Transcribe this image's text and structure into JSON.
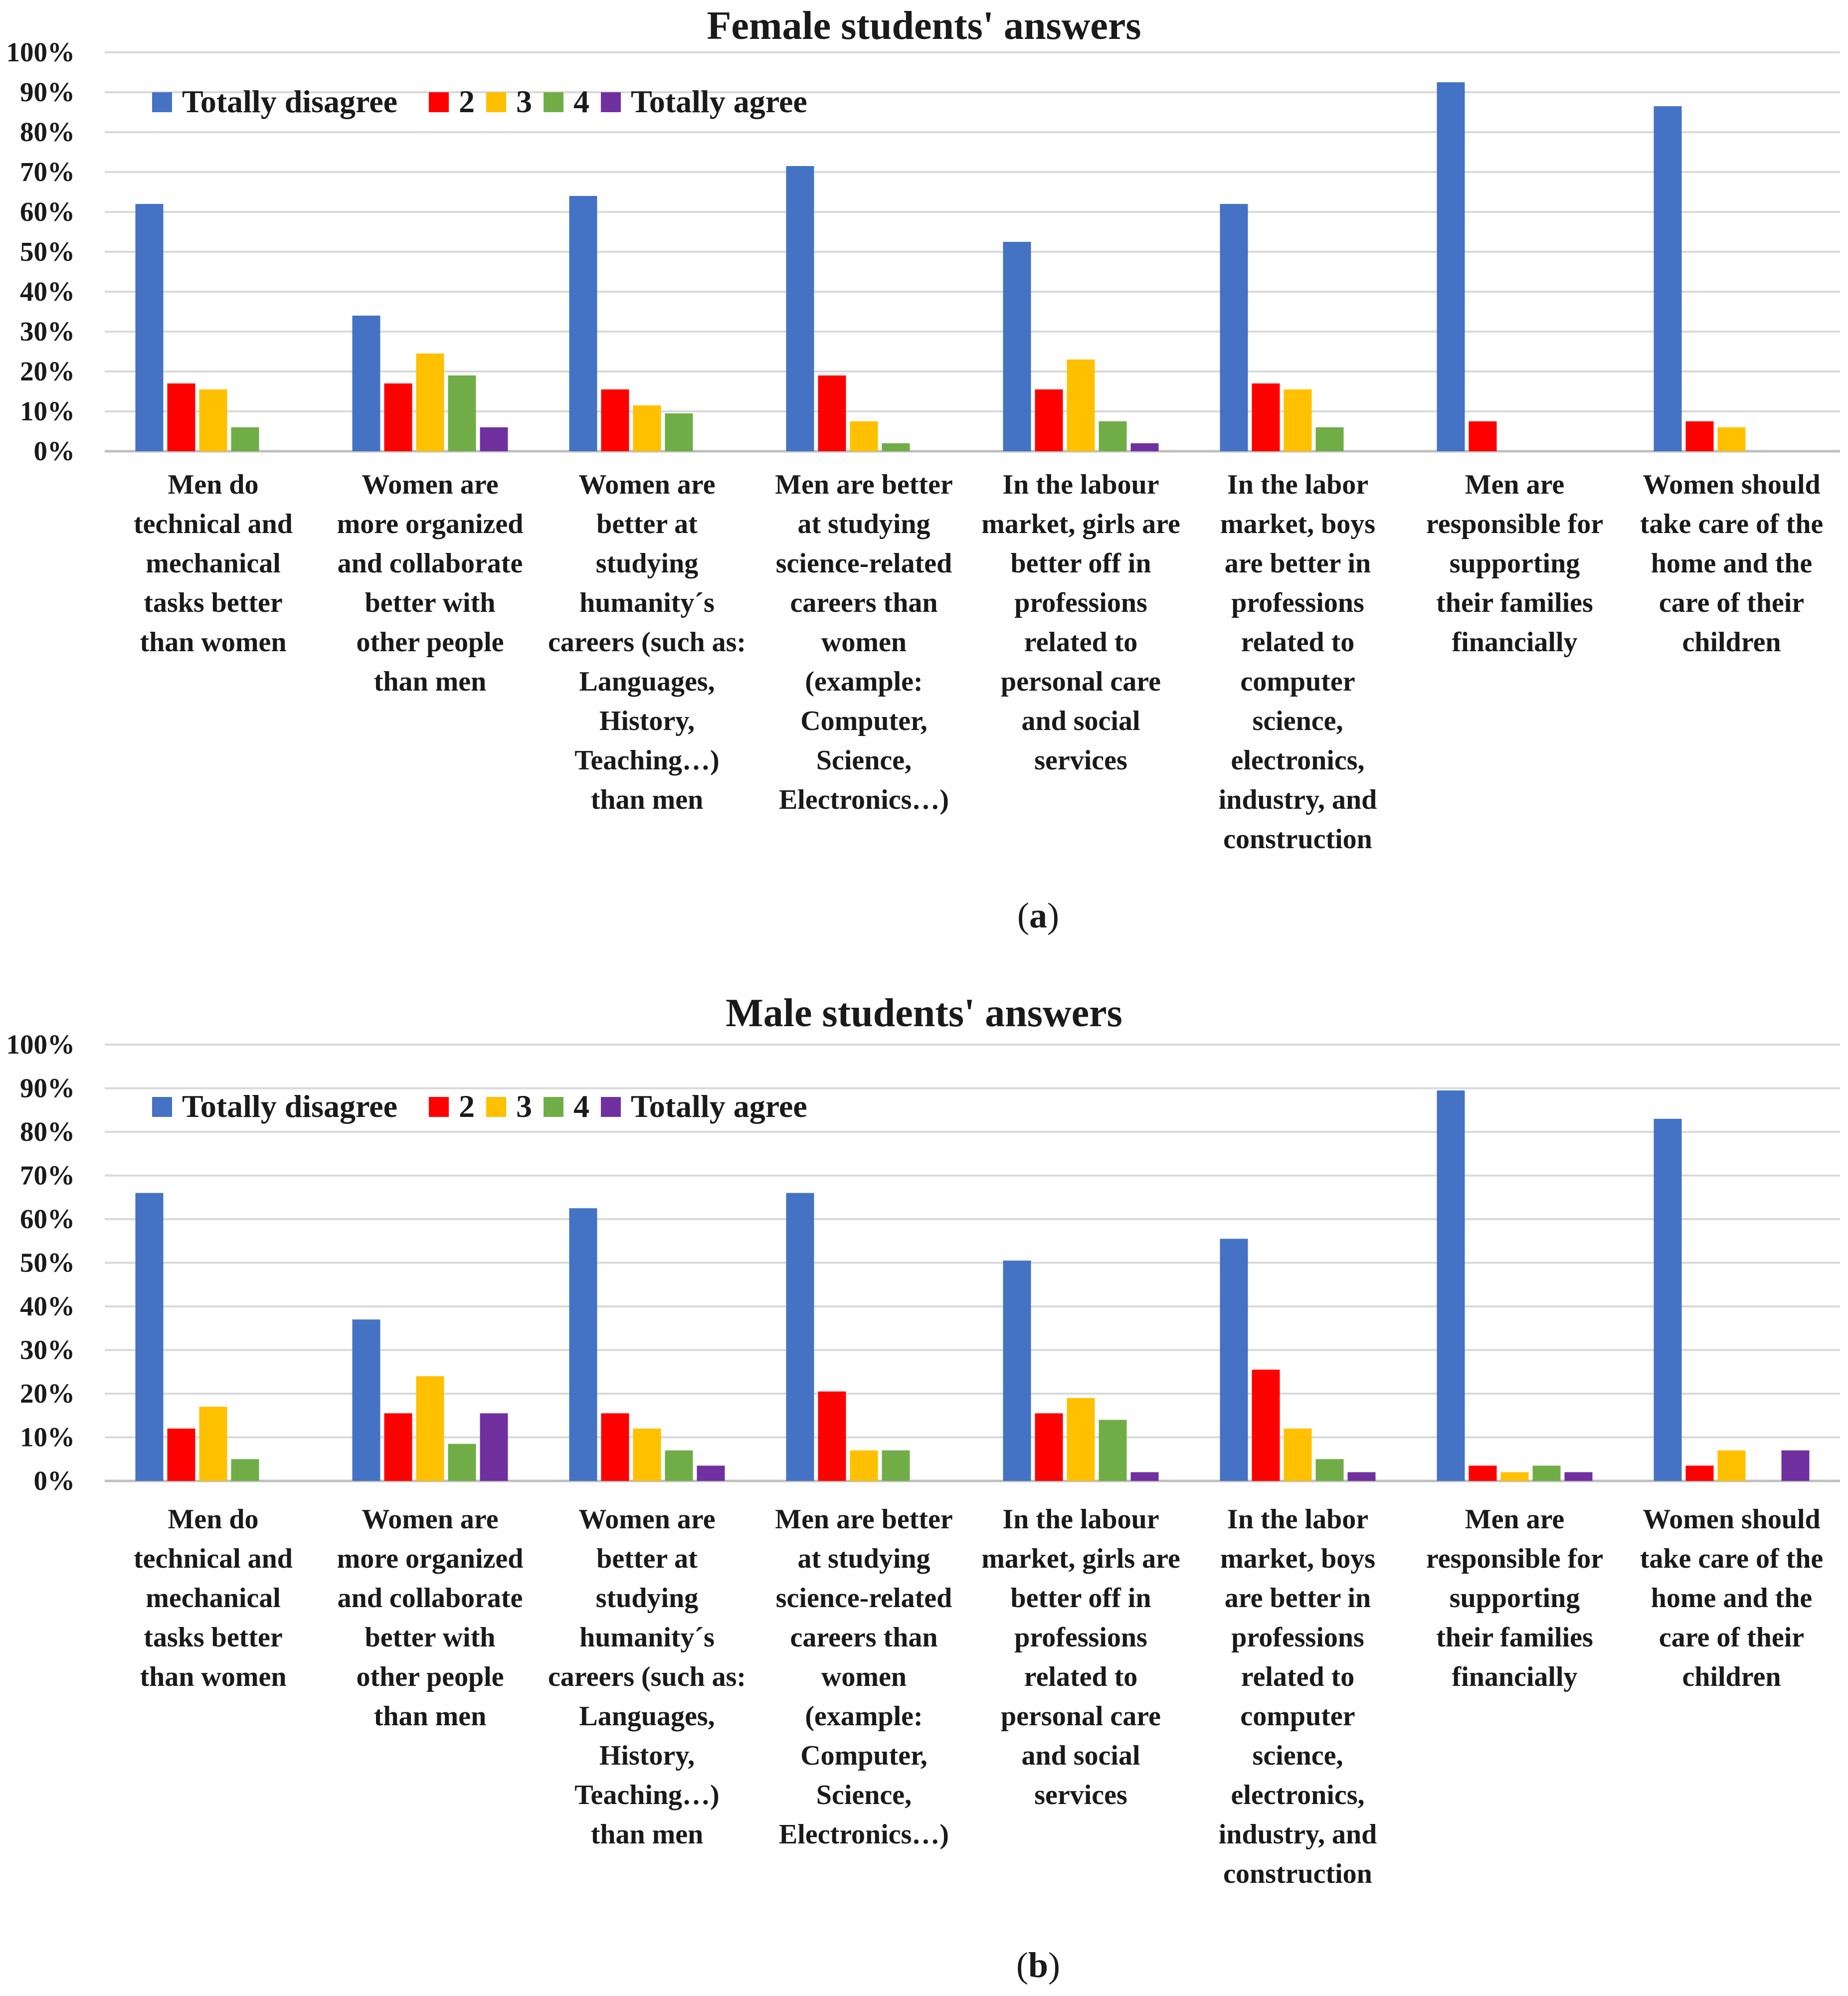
{
  "chart_data": [
    {
      "type": "bar",
      "title": "Female students' answers",
      "caption": {
        "open": "(",
        "letter": "a",
        "close": ")"
      },
      "ylim": [
        0,
        100
      ],
      "yticks": [
        "0%",
        "10%",
        "20%",
        "30%",
        "40%",
        "50%",
        "60%",
        "70%",
        "80%",
        "90%",
        "100%"
      ],
      "grid": true,
      "legend_position": "top-left",
      "categories": [
        [
          "Men do",
          "technical and",
          "mechanical",
          "tasks better",
          "than women"
        ],
        [
          "Women are",
          "more organized",
          "and collaborate",
          "better with",
          "other people",
          "than men"
        ],
        [
          "Women are",
          "better at",
          "studying",
          "humanity´s",
          "careers (such as:",
          "Languages,",
          "History,",
          "Teaching…)",
          "than men"
        ],
        [
          "Men are better",
          "at studying",
          "science-related",
          "careers than",
          "women",
          "(example:",
          "Computer,",
          "Science,",
          "Electronics…)"
        ],
        [
          "In the labour",
          "market, girls are",
          "better off in",
          "professions",
          "related to",
          "personal care",
          "and social",
          "services"
        ],
        [
          "In the labor",
          "market, boys",
          "are better in",
          "professions",
          "related to",
          "computer",
          "science,",
          "electronics,",
          "industry, and",
          "construction"
        ],
        [
          "Men are",
          "responsible for",
          "supporting",
          "their families",
          "financially"
        ],
        [
          "Women should",
          "take care of the",
          "home and the",
          "care of their",
          "children"
        ]
      ],
      "series": [
        {
          "name": "Totally disagree",
          "color": "#4472C4",
          "values": [
            62,
            34,
            64,
            71.5,
            52.5,
            62,
            92.5,
            86.5
          ]
        },
        {
          "name": "2",
          "color": "#FF0000",
          "values": [
            17,
            17,
            15.5,
            19,
            15.5,
            17,
            7.5,
            7.5
          ]
        },
        {
          "name": "3",
          "color": "#FFC000",
          "values": [
            15.5,
            24.5,
            11.5,
            7.5,
            23,
            15.5,
            0,
            6
          ]
        },
        {
          "name": "4",
          "color": "#70AD47",
          "values": [
            6,
            19,
            9.5,
            2,
            7.5,
            6,
            0,
            0
          ]
        },
        {
          "name": "Totally agree",
          "color": "#7030A0",
          "values": [
            0,
            6,
            0,
            0,
            2,
            0,
            0,
            0
          ]
        }
      ]
    },
    {
      "type": "bar",
      "title": "Male students' answers",
      "caption": {
        "open": "(",
        "letter": "b",
        "close": ")"
      },
      "ylim": [
        0,
        100
      ],
      "yticks": [
        "0%",
        "10%",
        "20%",
        "30%",
        "40%",
        "50%",
        "60%",
        "70%",
        "80%",
        "90%",
        "100%"
      ],
      "grid": true,
      "legend_position": "top-left",
      "categories": [
        [
          "Men do",
          "technical and",
          "mechanical",
          "tasks better",
          "than women"
        ],
        [
          "Women are",
          "more organized",
          "and collaborate",
          "better with",
          "other people",
          "than men"
        ],
        [
          "Women are",
          "better at",
          "studying",
          "humanity´s",
          "careers (such as:",
          "Languages,",
          "History,",
          "Teaching…)",
          "than men"
        ],
        [
          "Men are better",
          "at studying",
          "science-related",
          "careers than",
          "women",
          "(example:",
          "Computer,",
          "Science,",
          "Electronics…)"
        ],
        [
          "In the labour",
          "market, girls are",
          "better off in",
          "professions",
          "related to",
          "personal care",
          "and social",
          "services"
        ],
        [
          "In the labor",
          "market, boys",
          "are better in",
          "professions",
          "related to",
          "computer",
          "science,",
          "electronics,",
          "industry, and",
          "construction"
        ],
        [
          "Men are",
          "responsible for",
          "supporting",
          "their families",
          "financially"
        ],
        [
          "Women should",
          "take care of the",
          "home and the",
          "care of their",
          "children"
        ]
      ],
      "series": [
        {
          "name": "Totally disagree",
          "color": "#4472C4",
          "values": [
            66,
            37,
            62.5,
            66,
            50.5,
            55.5,
            89.5,
            83
          ]
        },
        {
          "name": "2",
          "color": "#FF0000",
          "values": [
            12,
            15.5,
            15.5,
            20.5,
            15.5,
            25.5,
            3.5,
            3.5
          ]
        },
        {
          "name": "3",
          "color": "#FFC000",
          "values": [
            17,
            24,
            12,
            7,
            19,
            12,
            2,
            7
          ]
        },
        {
          "name": "4",
          "color": "#70AD47",
          "values": [
            5,
            8.5,
            7,
            7,
            14,
            5,
            3.5,
            0
          ]
        },
        {
          "name": "Totally agree",
          "color": "#7030A0",
          "values": [
            0,
            15.5,
            3.5,
            0,
            2,
            2,
            2,
            7
          ]
        }
      ]
    }
  ]
}
